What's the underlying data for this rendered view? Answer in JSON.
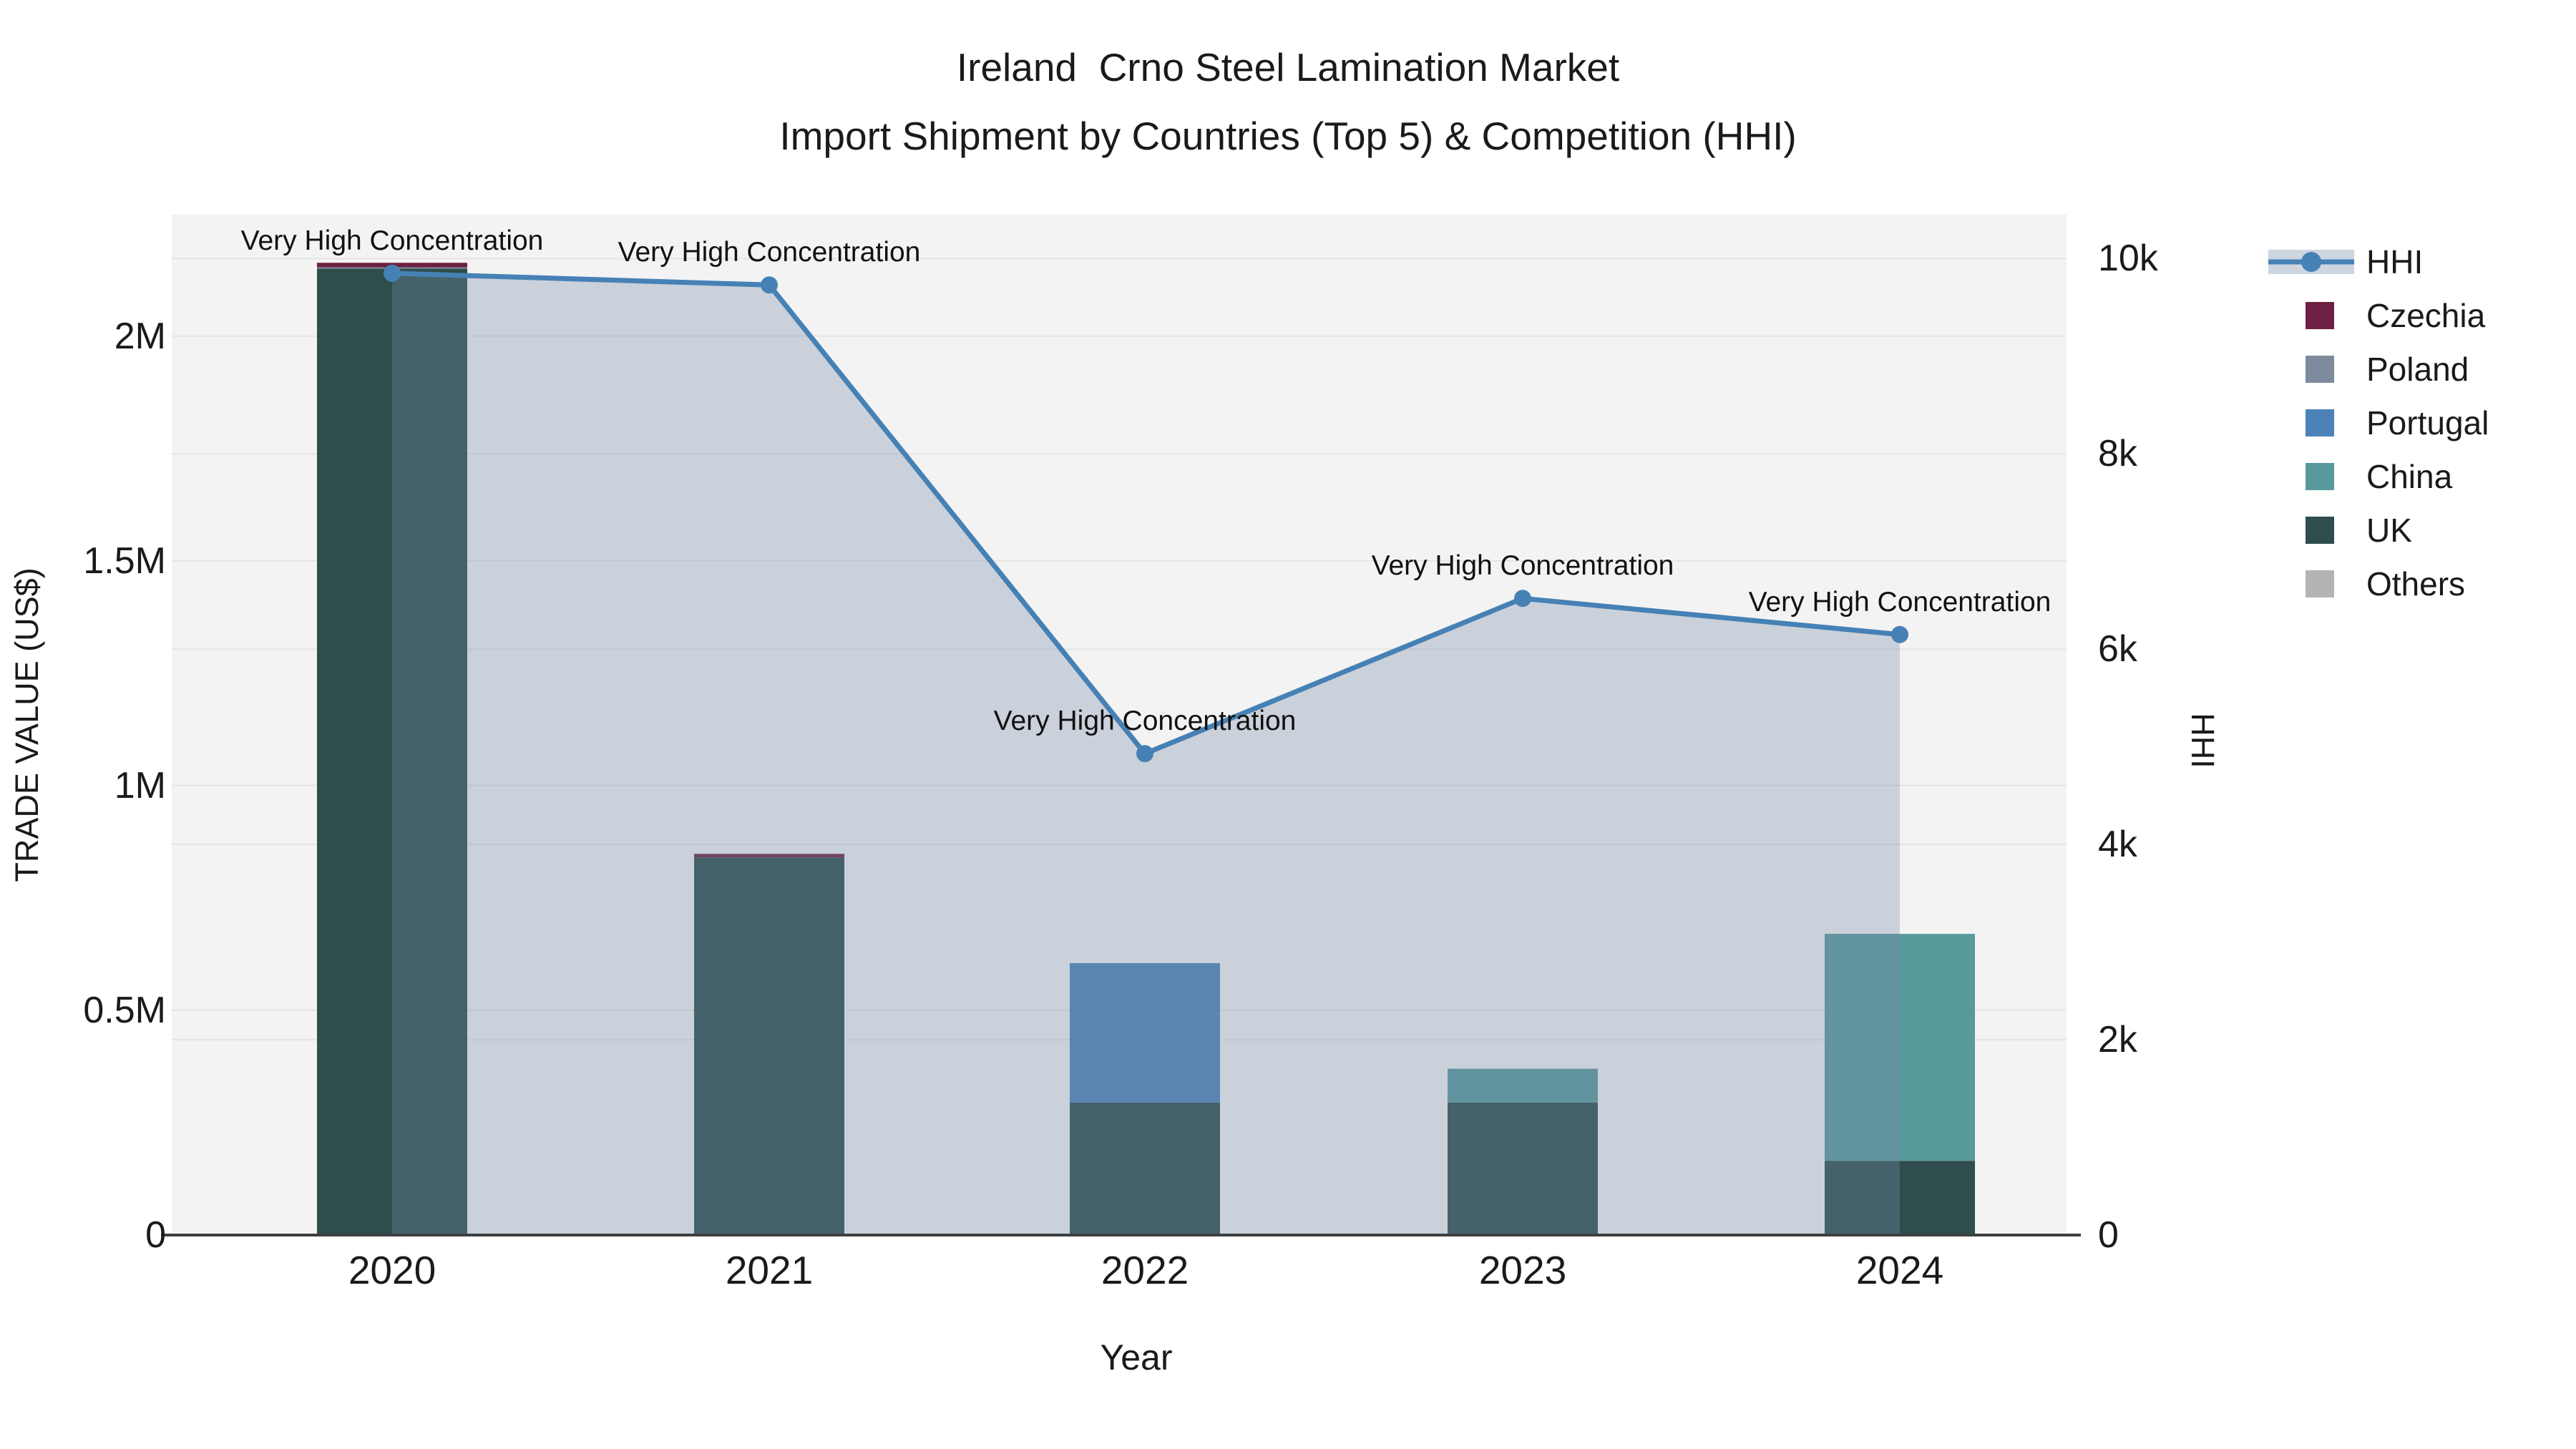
{
  "title": {
    "line1": "Ireland  Crno Steel Lamination Market",
    "line2": "Import Shipment by Countries (Top 5) & Competition (HHI)"
  },
  "chart_data": {
    "type": "combo-stacked-bar-line",
    "categories": [
      "2020",
      "2021",
      "2022",
      "2023",
      "2024"
    ],
    "bar_series": [
      {
        "name": "UK",
        "color": "#2E4D4C",
        "values": [
          2150000,
          840000,
          295000,
          295000,
          165000
        ]
      },
      {
        "name": "China",
        "color": "#58999B",
        "values": [
          0,
          0,
          0,
          75000,
          505000
        ]
      },
      {
        "name": "Portugal",
        "color": "#4C82B8",
        "values": [
          0,
          0,
          310000,
          0,
          0
        ]
      },
      {
        "name": "Poland",
        "color": "#7D8B9D",
        "values": [
          3000,
          0,
          0,
          0,
          0
        ]
      },
      {
        "name": "Czechia",
        "color": "#6E2142",
        "values": [
          10000,
          8000,
          0,
          0,
          0
        ]
      },
      {
        "name": "Others",
        "color": "#B3B3B3",
        "values": [
          0,
          0,
          0,
          0,
          0
        ]
      }
    ],
    "line_series": {
      "name": "HHI",
      "color": "#4681B5",
      "area_color": "rgba(118,139,167,0.33)",
      "values": [
        9850,
        9730,
        4930,
        6520,
        6150
      ]
    },
    "annotations": [
      {
        "year": "2020",
        "text": "Very High Concentration"
      },
      {
        "year": "2021",
        "text": "Very High Concentration"
      },
      {
        "year": "2022",
        "text": "Very High Concentration"
      },
      {
        "year": "2023",
        "text": "Very High Concentration"
      },
      {
        "year": "2024",
        "text": "Very High Concentration"
      }
    ],
    "xlabel": "Year",
    "ylabel_left": "TRADE VALUE (US$)",
    "ylabel_right": "HHI",
    "ylim_left": [
      0,
      2270000
    ],
    "ylim_right": [
      0,
      10450
    ],
    "y_left_ticks": [
      {
        "v": 0,
        "label": "0"
      },
      {
        "v": 500000,
        "label": "0.5M"
      },
      {
        "v": 1000000,
        "label": "1M"
      },
      {
        "v": 1500000,
        "label": "1.5M"
      },
      {
        "v": 2000000,
        "label": "2M"
      }
    ],
    "y_right_ticks": [
      {
        "v": 0,
        "label": "0"
      },
      {
        "v": 2000,
        "label": "2k"
      },
      {
        "v": 4000,
        "label": "4k"
      },
      {
        "v": 6000,
        "label": "6k"
      },
      {
        "v": 8000,
        "label": "8k"
      },
      {
        "v": 10000,
        "label": "10k"
      }
    ],
    "grid_on": true,
    "legend_position": "right",
    "legend": [
      {
        "id": "hhi",
        "label": "HHI",
        "type": "line"
      },
      {
        "id": "czechia",
        "label": "Czechia",
        "type": "bar",
        "series": "Czechia"
      },
      {
        "id": "poland",
        "label": "Poland",
        "type": "bar",
        "series": "Poland"
      },
      {
        "id": "portugal",
        "label": "Portugal",
        "type": "bar",
        "series": "Portugal"
      },
      {
        "id": "china",
        "label": "China",
        "type": "bar",
        "series": "China"
      },
      {
        "id": "uk",
        "label": "UK",
        "type": "bar",
        "series": "UK"
      },
      {
        "id": "others",
        "label": "Others",
        "type": "bar",
        "series": "Others"
      }
    ]
  }
}
